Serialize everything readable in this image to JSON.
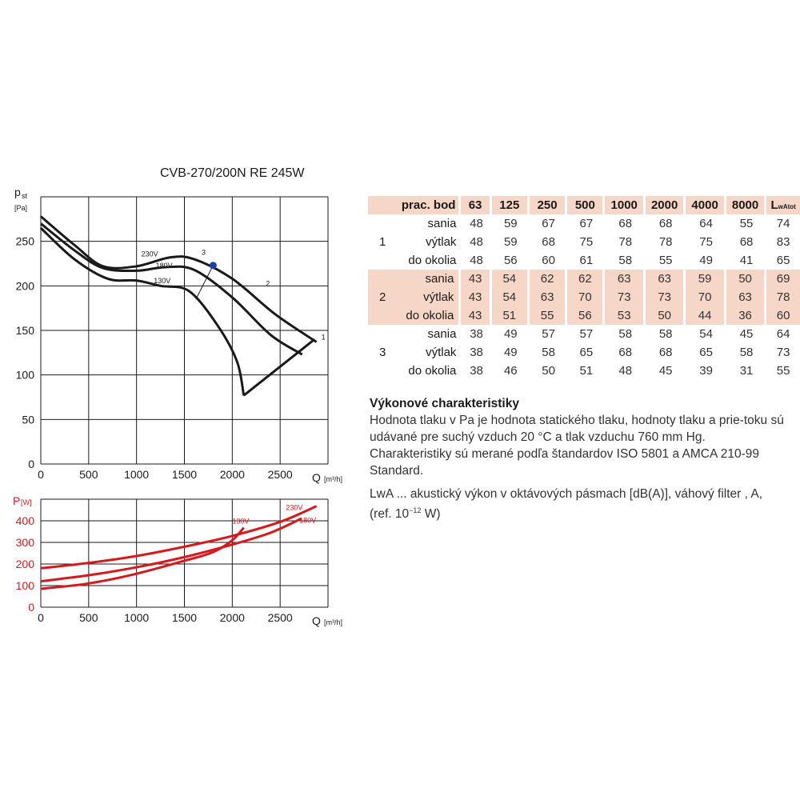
{
  "chart_data": [
    {
      "type": "line",
      "title": "CVB-270/200N RE 245W",
      "ylabel": "pst",
      "yunit": "[Pa]",
      "xlabel": "Q",
      "xunit": "[m³/h]",
      "xlim": [
        0,
        3000
      ],
      "ylim": [
        0,
        300
      ],
      "xticks": [
        0,
        500,
        1000,
        1500,
        2000,
        2500
      ],
      "yticks": [
        0,
        50,
        100,
        150,
        200,
        250
      ],
      "grid": true,
      "series": [
        {
          "name": "230V",
          "points": [
            [
              0,
              278
            ],
            [
              350,
              246
            ],
            [
              650,
              222
            ],
            [
              1000,
              222
            ],
            [
              1350,
              232
            ],
            [
              1600,
              230
            ],
            [
              2000,
              208
            ],
            [
              2450,
              168
            ],
            [
              2880,
              137
            ]
          ]
        },
        {
          "name": "180V",
          "points": [
            [
              0,
              270
            ],
            [
              350,
              240
            ],
            [
              650,
              220
            ],
            [
              1000,
              217
            ],
            [
              1300,
              221
            ],
            [
              1600,
              218
            ],
            [
              2000,
              187
            ],
            [
              2400,
              145
            ],
            [
              2730,
              123
            ]
          ]
        },
        {
          "name": "130V",
          "points": [
            [
              0,
              265
            ],
            [
              350,
              230
            ],
            [
              700,
              208
            ],
            [
              1000,
              206
            ],
            [
              1250,
              200
            ],
            [
              1550,
              194
            ],
            [
              1850,
              155
            ],
            [
              2050,
              115
            ],
            [
              2120,
              77
            ]
          ]
        },
        {
          "name": "",
          "points": [
            [
              2120,
              77
            ],
            [
              2860,
              140
            ]
          ]
        }
      ],
      "operating_points": [
        {
          "label": "1",
          "q": 2880,
          "p": 137
        },
        {
          "label": "2",
          "q": 2300,
          "p": 197
        },
        {
          "label": "3",
          "q": 1630,
          "p": 232
        }
      ],
      "marker": {
        "q": 1800,
        "p": 223
      }
    },
    {
      "type": "line",
      "ylabel": "P",
      "yunit": "[W]",
      "xlabel": "Q",
      "xunit": "[m³/h]",
      "xlim": [
        0,
        3000
      ],
      "ylim": [
        0,
        500
      ],
      "xticks": [
        0,
        500,
        1000,
        1500,
        2000,
        2500
      ],
      "yticks": [
        0,
        100,
        200,
        300,
        400
      ],
      "grid": true,
      "series": [
        {
          "name": "230V",
          "points": [
            [
              0,
              180
            ],
            [
              500,
              205
            ],
            [
              1000,
              237
            ],
            [
              1500,
              280
            ],
            [
              2000,
              330
            ],
            [
              2500,
              395
            ],
            [
              2880,
              468
            ]
          ]
        },
        {
          "name": "180V",
          "points": [
            [
              0,
              120
            ],
            [
              500,
              148
            ],
            [
              1000,
              185
            ],
            [
              1500,
              232
            ],
            [
              2000,
              290
            ],
            [
              2400,
              345
            ],
            [
              2720,
              410
            ]
          ]
        },
        {
          "name": "130V",
          "points": [
            [
              0,
              85
            ],
            [
              500,
              110
            ],
            [
              1000,
              155
            ],
            [
              1500,
              215
            ],
            [
              1800,
              255
            ],
            [
              2000,
              310
            ],
            [
              2120,
              368
            ]
          ]
        }
      ]
    }
  ],
  "labels": {
    "upper_y": "p",
    "upper_y_sub": "st",
    "upper_y_unit": "[Pa]",
    "lower_y": "P",
    "lower_y_unit": "[W]",
    "x_axis": "Q",
    "x_unit": "[m³/h]"
  },
  "colors": {
    "upper_curves": "#1a1a1a",
    "lower_curves": "#d7191c",
    "marker": "#1f3fa8",
    "table_shade": "#f6d6c6"
  },
  "octave_table": {
    "headers": [
      "prac. bod",
      "63",
      "125",
      "250",
      "500",
      "1000",
      "2000",
      "4000",
      "8000",
      "L"
    ],
    "lwa_sub": "wAtot",
    "groups": [
      {
        "point": "1",
        "rows": [
          {
            "label": "sania",
            "values": [
              "48",
              "59",
              "67",
              "67",
              "68",
              "68",
              "64",
              "55",
              "74"
            ]
          },
          {
            "label": "výtlak",
            "values": [
              "48",
              "59",
              "68",
              "75",
              "78",
              "78",
              "75",
              "68",
              "83"
            ]
          },
          {
            "label": "do okolia",
            "values": [
              "48",
              "56",
              "60",
              "61",
              "58",
              "55",
              "49",
              "41",
              "65"
            ]
          }
        ]
      },
      {
        "point": "2",
        "rows": [
          {
            "label": "sania",
            "values": [
              "43",
              "54",
              "62",
              "62",
              "63",
              "63",
              "59",
              "50",
              "69"
            ]
          },
          {
            "label": "výtlak",
            "values": [
              "43",
              "54",
              "63",
              "70",
              "73",
              "73",
              "70",
              "63",
              "78"
            ]
          },
          {
            "label": "do okolia",
            "values": [
              "43",
              "51",
              "55",
              "56",
              "53",
              "50",
              "44",
              "36",
              "60"
            ]
          }
        ]
      },
      {
        "point": "3",
        "rows": [
          {
            "label": "sania",
            "values": [
              "38",
              "49",
              "57",
              "57",
              "58",
              "58",
              "54",
              "45",
              "64"
            ]
          },
          {
            "label": "výtlak",
            "values": [
              "38",
              "49",
              "58",
              "65",
              "68",
              "68",
              "65",
              "58",
              "73"
            ]
          },
          {
            "label": "do okolia",
            "values": [
              "38",
              "46",
              "50",
              "51",
              "48",
              "45",
              "39",
              "31",
              "55"
            ]
          }
        ]
      }
    ]
  },
  "description": {
    "heading": "Výkonové charakteristiky",
    "body": "Hodnota tlaku v Pa je hodnota statického tlaku, hodnoty tlaku a prie-toku sú udávané pre suchý vzduch 20 °C a tlak vzduchu 760 mm Hg. Charakteristiky sú merané podľa štandardov ISO 5801 a AMCA 210-99 Standard.",
    "lwa_note": "LwA ... akustický výkon v oktávových pásmach [dB(A)], váhový filter , A, (ref. 10",
    "lwa_exp": "−12",
    "lwa_tail": " W)"
  }
}
